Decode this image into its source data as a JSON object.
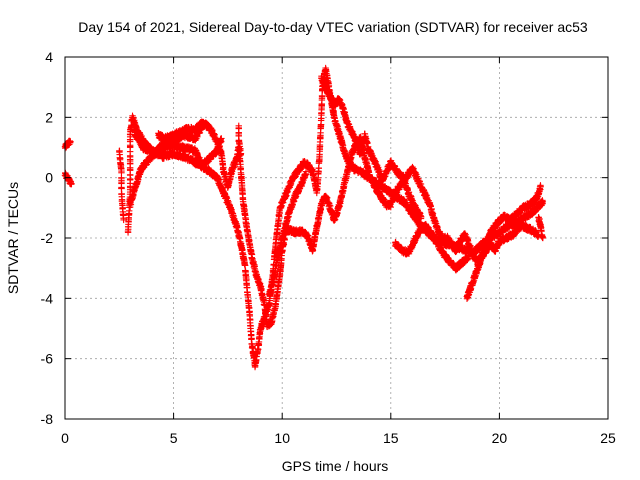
{
  "chart_data": {
    "type": "scatter",
    "title": "Day 154 of 2021, Sidereal Day-to-day VTEC variation (SDTVAR) for receiver ac53",
    "xlabel": "GPS time / hours",
    "ylabel": "SDTVAR / TECUs",
    "xlim": [
      0,
      25
    ],
    "ylim": [
      -8,
      4
    ],
    "xticks": [
      0,
      5,
      10,
      15,
      20,
      25
    ],
    "xtick_labels": [
      "0",
      "5",
      "10",
      "15",
      "20",
      "25"
    ],
    "yticks": [
      -8,
      -6,
      -4,
      -2,
      0,
      2,
      4
    ],
    "ytick_labels": [
      "-8",
      "-6",
      "-4",
      "-2",
      "0",
      "2",
      "4"
    ],
    "grid": true,
    "marker": "+",
    "color": "#ff0000",
    "series": [
      {
        "name": "SDTVAR",
        "anchors": [
          [
            [
              0.0,
              1.0
            ],
            [
              0.1,
              1.1
            ],
            [
              0.25,
              1.2
            ]
          ],
          [
            [
              0.0,
              0.1
            ],
            [
              0.1,
              0.0
            ],
            [
              0.2,
              -0.1
            ],
            [
              0.3,
              -0.2
            ]
          ],
          [
            [
              2.5,
              0.9
            ],
            [
              2.6,
              0.2
            ],
            [
              2.6,
              -0.5
            ],
            [
              2.65,
              -1.0
            ],
            [
              2.7,
              -1.4
            ]
          ],
          [
            [
              2.9,
              -1.8
            ],
            [
              3.0,
              -0.5
            ],
            [
              3.0,
              0.5
            ],
            [
              3.0,
              1.5
            ],
            [
              3.1,
              2.0
            ],
            [
              3.3,
              1.6
            ],
            [
              3.6,
              1.2
            ],
            [
              4.0,
              0.9
            ],
            [
              4.5,
              0.7
            ],
            [
              5.0,
              0.8
            ],
            [
              5.5,
              0.7
            ],
            [
              6.0,
              0.5
            ],
            [
              6.5,
              0.3
            ],
            [
              7.0,
              0.0
            ],
            [
              7.3,
              -0.5
            ],
            [
              7.6,
              -1.0
            ],
            [
              7.9,
              -1.6
            ],
            [
              8.1,
              -2.2
            ],
            [
              8.3,
              -3.0
            ],
            [
              8.4,
              -3.8
            ],
            [
              8.5,
              -4.5
            ],
            [
              8.6,
              -5.5
            ],
            [
              8.75,
              -6.2
            ],
            [
              8.9,
              -5.6
            ],
            [
              9.0,
              -5.0
            ],
            [
              9.2,
              -4.6
            ],
            [
              9.4,
              -4.2
            ],
            [
              9.5,
              -3.6
            ],
            [
              9.6,
              -3.0
            ],
            [
              9.7,
              -2.2
            ],
            [
              9.8,
              -1.6
            ],
            [
              9.9,
              -1.0
            ],
            [
              10.2,
              -0.5
            ],
            [
              10.5,
              0.0
            ],
            [
              10.8,
              0.3
            ],
            [
              11.0,
              0.5
            ],
            [
              11.2,
              0.4
            ],
            [
              11.4,
              0.2
            ],
            [
              11.6,
              -0.5
            ],
            [
              11.7,
              0.5
            ],
            [
              11.8,
              2.0
            ],
            [
              11.85,
              3.0
            ],
            [
              12.0,
              3.6
            ],
            [
              12.2,
              2.8
            ],
            [
              12.4,
              2.0
            ],
            [
              12.6,
              1.5
            ],
            [
              12.8,
              1.0
            ],
            [
              13.0,
              0.6
            ],
            [
              13.3,
              0.3
            ],
            [
              13.6,
              0.2
            ],
            [
              14.0,
              0.0
            ],
            [
              14.4,
              -0.2
            ],
            [
              14.8,
              -0.4
            ],
            [
              15.2,
              -0.6
            ],
            [
              15.6,
              -0.8
            ],
            [
              16.0,
              -1.2
            ],
            [
              16.4,
              -1.6
            ],
            [
              16.8,
              -1.9
            ],
            [
              17.2,
              -2.1
            ],
            [
              17.6,
              -2.2
            ],
            [
              18.0,
              -2.3
            ],
            [
              18.4,
              -2.4
            ],
            [
              18.8,
              -2.5
            ],
            [
              19.2,
              -2.2
            ],
            [
              19.6,
              -2.0
            ],
            [
              20.0,
              -1.8
            ],
            [
              20.4,
              -1.6
            ],
            [
              20.8,
              -1.5
            ],
            [
              21.2,
              -1.3
            ],
            [
              21.6,
              -1.1
            ],
            [
              22.0,
              -0.8
            ]
          ],
          [
            [
              3.0,
              -0.9
            ],
            [
              3.2,
              -0.4
            ],
            [
              3.5,
              0.3
            ],
            [
              4.0,
              0.7
            ],
            [
              4.5,
              1.1
            ],
            [
              5.0,
              1.2
            ],
            [
              5.5,
              1.4
            ],
            [
              6.0,
              1.3
            ],
            [
              6.4,
              1.8
            ],
            [
              6.7,
              1.6
            ],
            [
              7.0,
              1.2
            ],
            [
              7.2,
              0.8
            ],
            [
              7.3,
              0.2
            ],
            [
              7.5,
              -0.3
            ],
            [
              7.7,
              0.3
            ],
            [
              7.9,
              0.6
            ],
            [
              8.0,
              1.0
            ],
            [
              8.1,
              0.2
            ],
            [
              8.2,
              -0.8
            ],
            [
              8.4,
              -1.8
            ],
            [
              8.6,
              -2.6
            ],
            [
              8.8,
              -3.2
            ],
            [
              9.0,
              -3.6
            ],
            [
              9.2,
              -4.3
            ],
            [
              9.3,
              -4.9
            ],
            [
              9.5,
              -4.8
            ],
            [
              9.7,
              -4.2
            ],
            [
              9.9,
              -3.2
            ],
            [
              10.0,
              -2.4
            ],
            [
              10.2,
              -1.7
            ],
            [
              10.6,
              -1.8
            ],
            [
              11.0,
              -1.8
            ],
            [
              11.2,
              -2.0
            ],
            [
              11.4,
              -2.4
            ],
            [
              11.6,
              -1.6
            ],
            [
              11.8,
              -0.9
            ],
            [
              12.0,
              -0.6
            ],
            [
              12.2,
              -1.0
            ],
            [
              12.4,
              -1.4
            ],
            [
              12.6,
              -1.0
            ],
            [
              12.8,
              -0.4
            ],
            [
              13.0,
              0.2
            ],
            [
              13.2,
              0.8
            ],
            [
              13.4,
              1.1
            ],
            [
              13.6,
              1.3
            ],
            [
              13.8,
              0.7
            ],
            [
              14.0,
              0.1
            ],
            [
              14.2,
              -0.2
            ],
            [
              14.5,
              -0.6
            ],
            [
              14.8,
              -0.9
            ],
            [
              15.0,
              -0.9
            ],
            [
              15.2,
              -0.5
            ],
            [
              15.5,
              -0.2
            ],
            [
              15.8,
              0.1
            ],
            [
              16.0,
              0.3
            ],
            [
              16.2,
              0.0
            ],
            [
              16.4,
              -0.3
            ],
            [
              16.6,
              -0.6
            ],
            [
              16.8,
              -0.9
            ],
            [
              17.0,
              -1.4
            ],
            [
              17.2,
              -1.8
            ],
            [
              17.4,
              -2.0
            ],
            [
              17.6,
              -2.0
            ],
            [
              17.8,
              -2.2
            ],
            [
              18.0,
              -2.4
            ],
            [
              18.2,
              -2.1
            ],
            [
              18.4,
              -1.9
            ],
            [
              18.6,
              -2.2
            ],
            [
              18.8,
              -2.6
            ],
            [
              19.0,
              -2.8
            ],
            [
              19.2,
              -2.6
            ],
            [
              19.4,
              -2.4
            ],
            [
              19.6,
              -2.2
            ],
            [
              19.8,
              -2.4
            ],
            [
              20.0,
              -2.1
            ],
            [
              20.3,
              -2.0
            ],
            [
              20.6,
              -1.9
            ],
            [
              21.0,
              -1.6
            ],
            [
              21.4,
              -1.7
            ],
            [
              21.8,
              -1.9
            ]
          ],
          [
            [
              3.2,
              1.5
            ],
            [
              3.6,
              1.0
            ],
            [
              4.2,
              0.8
            ],
            [
              4.8,
              1.1
            ],
            [
              5.4,
              1.0
            ],
            [
              6.0,
              0.9
            ],
            [
              6.3,
              0.4
            ],
            [
              6.6,
              0.6
            ],
            [
              7.0,
              0.9
            ],
            [
              7.2,
              1.3
            ]
          ],
          [
            [
              4.3,
              1.4
            ],
            [
              4.6,
              1.3
            ],
            [
              5.0,
              1.4
            ],
            [
              5.3,
              1.5
            ],
            [
              5.6,
              1.6
            ],
            [
              6.0,
              1.6
            ],
            [
              6.3,
              1.8
            ],
            [
              6.6,
              1.7
            ]
          ],
          [
            [
              8.0,
              1.7
            ],
            [
              8.0,
              1.2
            ],
            [
              8.1,
              0.8
            ]
          ],
          [
            [
              9.4,
              -3.9
            ],
            [
              9.6,
              -3.4
            ],
            [
              9.8,
              -2.6
            ],
            [
              10.0,
              -2.0
            ],
            [
              10.3,
              -1.2
            ],
            [
              10.6,
              -0.6
            ],
            [
              10.9,
              -0.2
            ],
            [
              11.1,
              0.2
            ]
          ],
          [
            [
              11.8,
              3.3
            ],
            [
              12.0,
              3.0
            ],
            [
              12.2,
              2.7
            ],
            [
              12.4,
              2.4
            ],
            [
              12.6,
              2.6
            ],
            [
              12.8,
              2.3
            ],
            [
              13.0,
              1.8
            ],
            [
              13.2,
              1.5
            ],
            [
              13.4,
              1.2
            ],
            [
              13.6,
              0.8
            ],
            [
              13.8,
              1.4
            ],
            [
              14.0,
              0.9
            ],
            [
              14.2,
              0.6
            ],
            [
              14.4,
              0.3
            ],
            [
              14.6,
              -0.1
            ],
            [
              14.8,
              0.2
            ],
            [
              15.0,
              0.5
            ],
            [
              15.2,
              0.3
            ],
            [
              15.4,
              0.1
            ],
            [
              15.6,
              0.0
            ],
            [
              15.8,
              -0.5
            ],
            [
              16.0,
              -0.8
            ],
            [
              16.2,
              -1.1
            ],
            [
              16.4,
              -1.3
            ]
          ],
          [
            [
              15.2,
              -2.2
            ],
            [
              15.5,
              -2.4
            ],
            [
              15.8,
              -2.5
            ],
            [
              16.0,
              -2.2
            ],
            [
              16.3,
              -1.8
            ],
            [
              16.6,
              -1.6
            ],
            [
              17.0,
              -2.0
            ],
            [
              17.3,
              -2.4
            ],
            [
              17.6,
              -2.7
            ],
            [
              18.0,
              -3.0
            ],
            [
              18.3,
              -2.8
            ],
            [
              18.6,
              -2.6
            ]
          ],
          [
            [
              18.5,
              -4.0
            ],
            [
              18.7,
              -3.6
            ],
            [
              18.9,
              -3.2
            ],
            [
              19.1,
              -2.8
            ],
            [
              19.3,
              -2.3
            ],
            [
              19.6,
              -1.8
            ],
            [
              19.9,
              -1.5
            ],
            [
              20.2,
              -1.3
            ],
            [
              20.5,
              -1.4
            ],
            [
              20.8,
              -1.2
            ],
            [
              21.1,
              -1.0
            ],
            [
              21.4,
              -0.9
            ],
            [
              21.7,
              -0.7
            ],
            [
              21.9,
              -0.3
            ]
          ],
          [
            [
              21.8,
              -1.3
            ],
            [
              21.9,
              -1.6
            ],
            [
              21.95,
              -1.9
            ],
            [
              22.0,
              -2.0
            ]
          ]
        ],
        "samples_per_hour": 90
      }
    ]
  }
}
